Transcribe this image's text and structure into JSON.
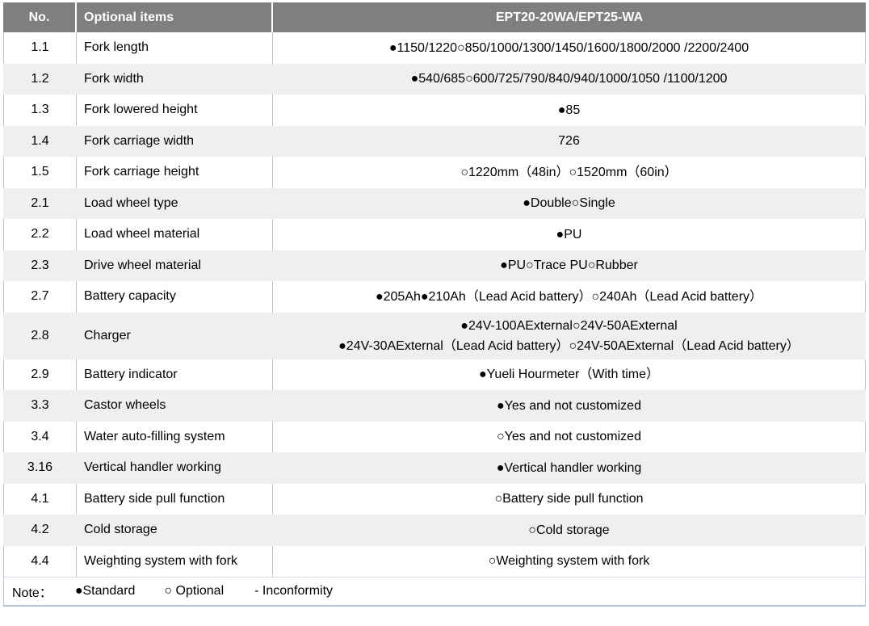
{
  "header": {
    "no": "No.",
    "item": "Optional items",
    "model": "EPT20-20WA/EPT25-WA"
  },
  "rows": [
    {
      "no": "1.1",
      "item": "Fork length",
      "value": "●1150/1220○850/1000/1300/1450/1600/1800/2000 /2200/2400"
    },
    {
      "no": "1.2",
      "item": "Fork width",
      "value": "●540/685○600/725/790/840/940/1000/1050 /1100/1200"
    },
    {
      "no": "1.3",
      "item": "Fork lowered height",
      "value": "●85"
    },
    {
      "no": "1.4",
      "item": "Fork carriage width",
      "value": "726"
    },
    {
      "no": "1.5",
      "item": "Fork carriage height",
      "value": "○1220mm（48in）○1520mm（60in）"
    },
    {
      "no": "2.1",
      "item": "Load wheel type",
      "value": "●Double○Single"
    },
    {
      "no": "2.2",
      "item": "Load wheel material",
      "value": "●PU"
    },
    {
      "no": "2.3",
      "item": "Drive wheel material",
      "value": "●PU○Trace PU○Rubber"
    },
    {
      "no": "2.7",
      "item": "Battery capacity",
      "value": "●205Ah●210Ah（Lead Acid battery）○240Ah（Lead Acid battery）"
    },
    {
      "no": "2.8",
      "item": "Charger",
      "value": "●24V-100AExternal○24V-50AExternal\n●24V-30AExternal（Lead Acid battery）○24V-50AExternal（Lead Acid battery）"
    },
    {
      "no": "2.9",
      "item": "Battery indicator",
      "value": "●Yueli Hourmeter（With time）"
    },
    {
      "no": "3.3",
      "item": "Castor wheels",
      "value": "●Yes and not customized"
    },
    {
      "no": "3.4",
      "item": "Water auto-filling system",
      "value": "○Yes and not customized"
    },
    {
      "no": "3.16",
      "item": "Vertical handler working",
      "value": "●Vertical handler working"
    },
    {
      "no": "4.1",
      "item": "Battery side pull function",
      "value": "○Battery side pull function"
    },
    {
      "no": "4.2",
      "item": "Cold storage",
      "value": "○Cold storage"
    },
    {
      "no": "4.4",
      "item": "Weighting system with fork",
      "value": "○Weighting system with fork"
    }
  ],
  "note": {
    "label": "Note：",
    "standard": "●Standard",
    "optional": "○ Optional",
    "inconformity": "- Inconformity"
  },
  "colors": {
    "header_bg": "#7f7f7f",
    "header_text": "#ffffff",
    "row_stripe": "#f0efef",
    "border": "#b9c3d8",
    "body_text": "#000000"
  }
}
